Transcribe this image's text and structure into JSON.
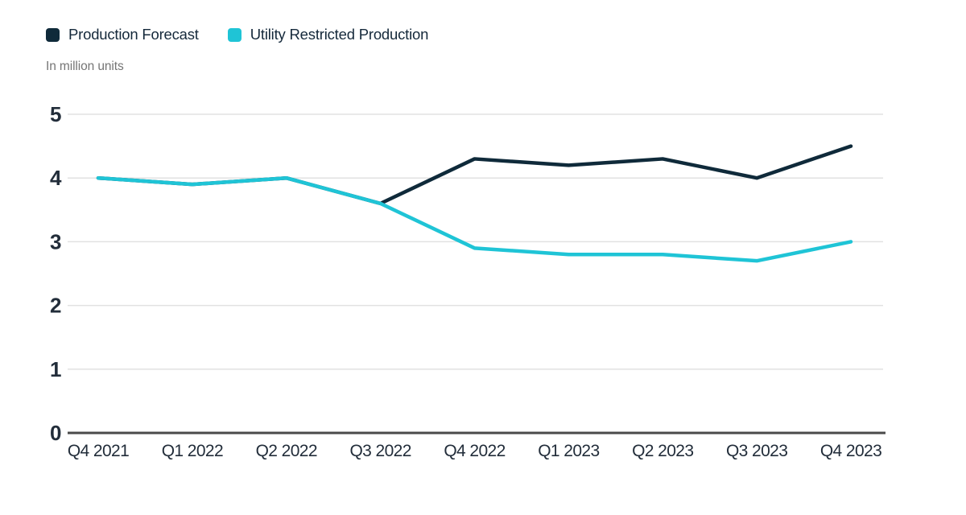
{
  "subtitle": "In million units",
  "colors": {
    "series_forecast": "#0f2a3a",
    "series_restricted": "#1fc4d6",
    "gridline": "#e2e2e2",
    "zero_axis": "#4a4a4a",
    "tick_label": "#222d3a",
    "subtitle_text": "#757575"
  },
  "chart_data": {
    "type": "line",
    "title": "",
    "subtitle": "In million units",
    "categories": [
      "Q4 2021",
      "Q1 2022",
      "Q2 2022",
      "Q3 2022",
      "Q4 2022",
      "Q1 2023",
      "Q2 2023",
      "Q3 2023",
      "Q4 2023"
    ],
    "series": [
      {
        "name": "Production Forecast",
        "color": "#0f2a3a",
        "values": [
          4.0,
          3.9,
          4.0,
          3.6,
          4.3,
          4.2,
          4.3,
          4.0,
          4.5
        ]
      },
      {
        "name": "Utility Restricted Production",
        "color": "#1fc4d6",
        "values": [
          4.0,
          3.9,
          4.0,
          3.6,
          2.9,
          2.8,
          2.8,
          2.7,
          3.0
        ]
      }
    ],
    "xlabel": "",
    "ylabel": "In million units",
    "ylim": [
      0,
      5
    ],
    "yticks": [
      0,
      1,
      2,
      3,
      4,
      5
    ],
    "grid": true,
    "legend_position": "top-left"
  }
}
